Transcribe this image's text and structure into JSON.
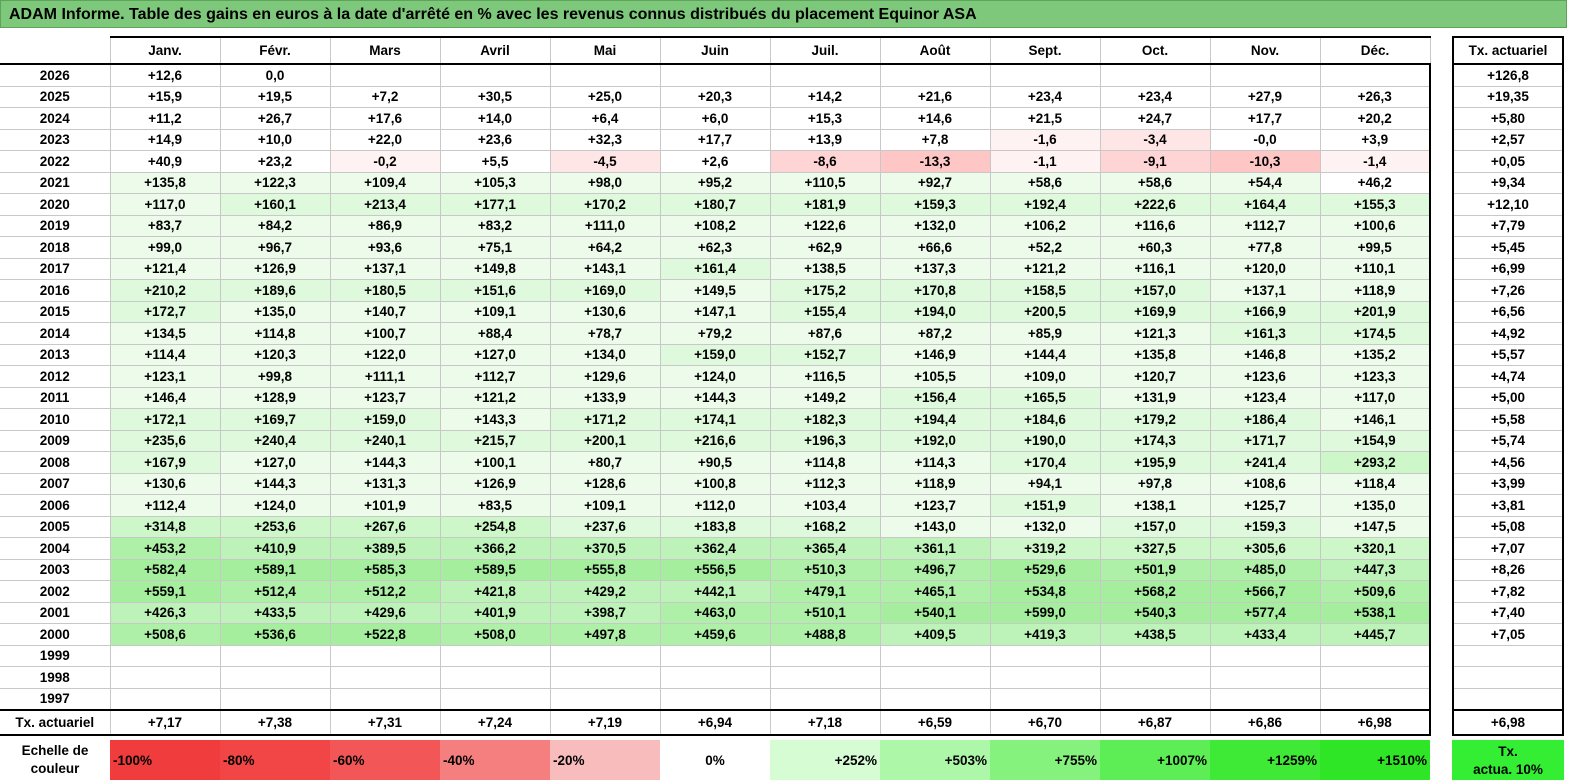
{
  "title": "ADAM Informe. Table des gains en euros à la date d'arrêté en % avec les revenus connus distribués du placement Equinor ASA",
  "months": [
    "Janv.",
    "Févr.",
    "Mars",
    "Avril",
    "Mai",
    "Juin",
    "Juil.",
    "Août",
    "Sept.",
    "Oct.",
    "Nov.",
    "Déc."
  ],
  "side_header": "Tx. actuariel",
  "rows": [
    {
      "year": "2026",
      "values": [
        "+12,6",
        "0,0",
        "",
        "",
        "",
        "",
        "",
        "",
        "",
        "",
        "",
        ""
      ],
      "rate": "+126,8"
    },
    {
      "year": "2025",
      "values": [
        "+15,9",
        "+19,5",
        "+7,2",
        "+30,5",
        "+25,0",
        "+20,3",
        "+14,2",
        "+21,6",
        "+23,4",
        "+23,4",
        "+27,9",
        "+26,3"
      ],
      "rate": "+19,35"
    },
    {
      "year": "2024",
      "values": [
        "+11,2",
        "+26,7",
        "+17,6",
        "+14,0",
        "+6,4",
        "+6,0",
        "+15,3",
        "+14,6",
        "+21,5",
        "+24,7",
        "+17,7",
        "+20,2"
      ],
      "rate": "+5,80"
    },
    {
      "year": "2023",
      "values": [
        "+14,9",
        "+10,0",
        "+22,0",
        "+23,6",
        "+32,3",
        "+17,7",
        "+13,9",
        "+7,8",
        "-1,6",
        "-3,4",
        "-0,0",
        "+3,9"
      ],
      "rate": "+2,57"
    },
    {
      "year": "2022",
      "values": [
        "+40,9",
        "+23,2",
        "-0,2",
        "+5,5",
        "-4,5",
        "+2,6",
        "-8,6",
        "-13,3",
        "-1,1",
        "-9,1",
        "-10,3",
        "-1,4"
      ],
      "rate": "+0,05"
    },
    {
      "year": "2021",
      "values": [
        "+135,8",
        "+122,3",
        "+109,4",
        "+105,3",
        "+98,0",
        "+95,2",
        "+110,5",
        "+92,7",
        "+58,6",
        "+58,6",
        "+54,4",
        "+46,2"
      ],
      "rate": "+9,34"
    },
    {
      "year": "2020",
      "values": [
        "+117,0",
        "+160,1",
        "+213,4",
        "+177,1",
        "+170,2",
        "+180,7",
        "+181,9",
        "+159,3",
        "+192,4",
        "+222,6",
        "+164,4",
        "+155,3"
      ],
      "rate": "+12,10"
    },
    {
      "year": "2019",
      "values": [
        "+83,7",
        "+84,2",
        "+86,9",
        "+83,2",
        "+111,0",
        "+108,2",
        "+122,6",
        "+132,0",
        "+106,2",
        "+116,6",
        "+112,7",
        "+100,6"
      ],
      "rate": "+7,79"
    },
    {
      "year": "2018",
      "values": [
        "+99,0",
        "+96,7",
        "+93,6",
        "+75,1",
        "+64,2",
        "+62,3",
        "+62,9",
        "+66,6",
        "+52,2",
        "+60,3",
        "+77,8",
        "+99,5"
      ],
      "rate": "+5,45"
    },
    {
      "year": "2017",
      "values": [
        "+121,4",
        "+126,9",
        "+137,1",
        "+149,8",
        "+143,1",
        "+161,4",
        "+138,5",
        "+137,3",
        "+121,2",
        "+116,1",
        "+120,0",
        "+110,1"
      ],
      "rate": "+6,99"
    },
    {
      "year": "2016",
      "values": [
        "+210,2",
        "+189,6",
        "+180,5",
        "+151,6",
        "+169,0",
        "+149,5",
        "+175,2",
        "+170,8",
        "+158,5",
        "+157,0",
        "+137,1",
        "+118,9"
      ],
      "rate": "+7,26"
    },
    {
      "year": "2015",
      "values": [
        "+172,7",
        "+135,0",
        "+140,7",
        "+109,1",
        "+130,6",
        "+147,1",
        "+155,4",
        "+194,0",
        "+200,5",
        "+169,9",
        "+166,9",
        "+201,9"
      ],
      "rate": "+6,56"
    },
    {
      "year": "2014",
      "values": [
        "+134,5",
        "+114,8",
        "+100,7",
        "+88,4",
        "+78,7",
        "+79,2",
        "+87,6",
        "+87,2",
        "+85,9",
        "+121,3",
        "+161,3",
        "+174,5"
      ],
      "rate": "+4,92"
    },
    {
      "year": "2013",
      "values": [
        "+114,4",
        "+120,3",
        "+122,0",
        "+127,0",
        "+134,0",
        "+159,0",
        "+152,7",
        "+146,9",
        "+144,4",
        "+135,8",
        "+146,8",
        "+135,2"
      ],
      "rate": "+5,57"
    },
    {
      "year": "2012",
      "values": [
        "+123,1",
        "+99,8",
        "+111,1",
        "+112,7",
        "+129,6",
        "+124,0",
        "+116,5",
        "+105,5",
        "+109,0",
        "+120,7",
        "+123,6",
        "+123,3"
      ],
      "rate": "+4,74"
    },
    {
      "year": "2011",
      "values": [
        "+146,4",
        "+128,9",
        "+123,7",
        "+121,2",
        "+133,9",
        "+144,3",
        "+149,2",
        "+156,4",
        "+165,5",
        "+131,9",
        "+123,4",
        "+117,0"
      ],
      "rate": "+5,00"
    },
    {
      "year": "2010",
      "values": [
        "+172,1",
        "+169,7",
        "+159,0",
        "+143,3",
        "+171,2",
        "+174,1",
        "+182,3",
        "+194,4",
        "+184,6",
        "+179,2",
        "+186,4",
        "+146,1"
      ],
      "rate": "+5,58"
    },
    {
      "year": "2009",
      "values": [
        "+235,6",
        "+240,4",
        "+240,1",
        "+215,7",
        "+200,1",
        "+216,6",
        "+196,3",
        "+192,0",
        "+190,0",
        "+174,3",
        "+171,7",
        "+154,9"
      ],
      "rate": "+5,74"
    },
    {
      "year": "2008",
      "values": [
        "+167,9",
        "+127,0",
        "+144,3",
        "+100,1",
        "+80,7",
        "+90,5",
        "+114,8",
        "+114,3",
        "+170,4",
        "+195,9",
        "+241,4",
        "+293,2"
      ],
      "rate": "+4,56"
    },
    {
      "year": "2007",
      "values": [
        "+130,6",
        "+144,3",
        "+131,3",
        "+126,9",
        "+128,6",
        "+100,8",
        "+112,3",
        "+118,9",
        "+94,1",
        "+97,8",
        "+108,6",
        "+118,4"
      ],
      "rate": "+3,99"
    },
    {
      "year": "2006",
      "values": [
        "+112,4",
        "+124,0",
        "+101,9",
        "+83,5",
        "+109,1",
        "+112,0",
        "+103,4",
        "+123,7",
        "+151,9",
        "+138,1",
        "+125,7",
        "+135,0"
      ],
      "rate": "+3,81"
    },
    {
      "year": "2005",
      "values": [
        "+314,8",
        "+253,6",
        "+267,6",
        "+254,8",
        "+237,6",
        "+183,8",
        "+168,2",
        "+143,0",
        "+132,0",
        "+157,0",
        "+159,3",
        "+147,5"
      ],
      "rate": "+5,08"
    },
    {
      "year": "2004",
      "values": [
        "+453,2",
        "+410,9",
        "+389,5",
        "+366,2",
        "+370,5",
        "+362,4",
        "+365,4",
        "+361,1",
        "+319,2",
        "+327,5",
        "+305,6",
        "+320,1"
      ],
      "rate": "+7,07"
    },
    {
      "year": "2003",
      "values": [
        "+582,4",
        "+589,1",
        "+585,3",
        "+589,5",
        "+555,8",
        "+556,5",
        "+510,3",
        "+496,7",
        "+529,6",
        "+501,9",
        "+485,0",
        "+447,3"
      ],
      "rate": "+8,26"
    },
    {
      "year": "2002",
      "values": [
        "+559,1",
        "+512,4",
        "+512,2",
        "+421,8",
        "+429,2",
        "+442,1",
        "+479,1",
        "+465,1",
        "+534,8",
        "+568,2",
        "+566,7",
        "+509,6"
      ],
      "rate": "+7,82"
    },
    {
      "year": "2001",
      "values": [
        "+426,3",
        "+433,5",
        "+429,6",
        "+401,9",
        "+398,7",
        "+463,0",
        "+510,1",
        "+540,1",
        "+599,0",
        "+540,3",
        "+577,4",
        "+538,1"
      ],
      "rate": "+7,40"
    },
    {
      "year": "2000",
      "values": [
        "+508,6",
        "+536,6",
        "+522,8",
        "+508,0",
        "+497,8",
        "+459,6",
        "+488,8",
        "+409,5",
        "+419,3",
        "+438,5",
        "+433,4",
        "+445,7"
      ],
      "rate": "+7,05"
    },
    {
      "year": "1999",
      "values": [
        "",
        "",
        "",
        "",
        "",
        "",
        "",
        "",
        "",
        "",
        "",
        ""
      ],
      "rate": ""
    },
    {
      "year": "1998",
      "values": [
        "",
        "",
        "",
        "",
        "",
        "",
        "",
        "",
        "",
        "",
        "",
        ""
      ],
      "rate": ""
    },
    {
      "year": "1997",
      "values": [
        "",
        "",
        "",
        "",
        "",
        "",
        "",
        "",
        "",
        "",
        "",
        ""
      ],
      "rate": ""
    }
  ],
  "tx_row": {
    "label": "Tx. actuariel",
    "values": [
      "+7,17",
      "+7,38",
      "+7,31",
      "+7,24",
      "+7,19",
      "+6,94",
      "+7,18",
      "+6,59",
      "+6,70",
      "+6,87",
      "+6,86",
      "+6,98"
    ],
    "rate": "+6,98"
  },
  "scale": {
    "label_line1": "Echelle de",
    "label_line2": "couleur",
    "cells": [
      {
        "text": "-100%",
        "color": "#f03c3c",
        "align": "left"
      },
      {
        "text": "-80%",
        "color": "#f24646",
        "align": "left"
      },
      {
        "text": "-60%",
        "color": "#f35656",
        "align": "left"
      },
      {
        "text": "-40%",
        "color": "#f57f7f",
        "align": "left"
      },
      {
        "text": "-20%",
        "color": "#f9bcbc",
        "align": "left"
      },
      {
        "text": "0%",
        "color": "#ffffff",
        "align": "center"
      },
      {
        "text": "+252%",
        "color": "#d6fcd4",
        "align": "right"
      },
      {
        "text": "+503%",
        "color": "#adf7a9",
        "align": "right"
      },
      {
        "text": "+755%",
        "color": "#85f27e",
        "align": "right"
      },
      {
        "text": "+1007%",
        "color": "#5cee54",
        "align": "right"
      },
      {
        "text": "+1259%",
        "color": "#3eea35",
        "align": "right"
      },
      {
        "text": "+1510%",
        "color": "#2ee625",
        "align": "right"
      }
    ],
    "side_line1": "Tx.",
    "side_line2": "actua. 10%"
  }
}
